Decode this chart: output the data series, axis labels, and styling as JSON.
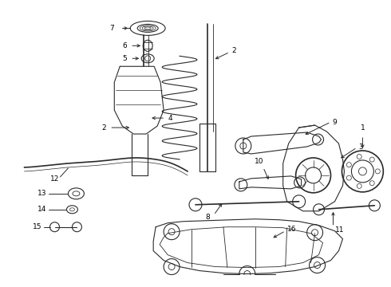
{
  "bg_color": "#ffffff",
  "line_color": "#2a2a2a",
  "figsize": [
    4.9,
    3.6
  ],
  "dpi": 100
}
